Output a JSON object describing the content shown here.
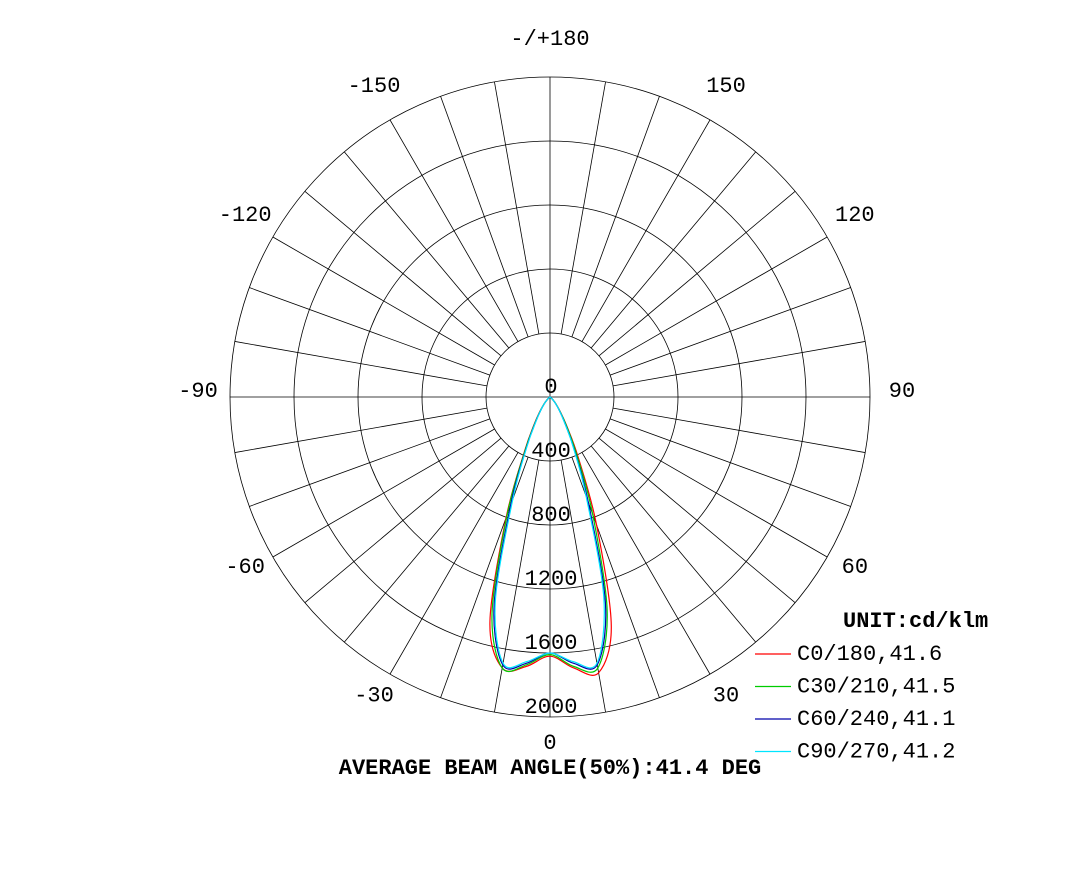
{
  "chart_data": {
    "type": "polar",
    "title": "AVERAGE BEAM ANGLE(50%):41.4 DEG",
    "unit_label": "UNIT:cd/klm",
    "theta": [
      -90,
      -60,
      -45,
      -40,
      -35,
      -30,
      -25,
      -20,
      -15,
      -10,
      -5,
      0,
      5,
      10,
      15,
      20,
      25,
      30,
      35,
      40,
      45,
      60,
      90
    ],
    "rlim": [
      0,
      2000
    ],
    "rticks": [
      0,
      400,
      800,
      1200,
      1600,
      2000
    ],
    "thetaticks": [
      0,
      30,
      60,
      90,
      120,
      150,
      {
        "value": 180,
        "label": "-/+180"
      },
      -150,
      -120,
      -90,
      -60,
      -30
    ],
    "series": [
      {
        "name": "C0/180,41.6",
        "color": "#ff0000",
        "values": [
          0,
          5,
          30,
          60,
          110,
          200,
          380,
          800,
          1450,
          1720,
          1690,
          1620,
          1700,
          1750,
          1480,
          850,
          420,
          210,
          110,
          60,
          30,
          5,
          0
        ]
      },
      {
        "name": "C30/210,41.5",
        "color": "#00cc00",
        "values": [
          0,
          5,
          30,
          60,
          105,
          190,
          370,
          780,
          1400,
          1720,
          1680,
          1610,
          1690,
          1720,
          1380,
          780,
          390,
          200,
          105,
          60,
          30,
          5,
          0
        ]
      },
      {
        "name": "C60/240,41.1",
        "color": "#0000aa",
        "values": [
          0,
          5,
          28,
          55,
          100,
          180,
          350,
          720,
          1350,
          1700,
          1670,
          1600,
          1670,
          1700,
          1340,
          700,
          350,
          180,
          100,
          55,
          28,
          5,
          0
        ]
      },
      {
        "name": "C90/270,41.2",
        "color": "#00e5ff",
        "values": [
          0,
          5,
          28,
          55,
          100,
          175,
          340,
          680,
          1320,
          1690,
          1660,
          1600,
          1660,
          1690,
          1300,
          660,
          340,
          175,
          100,
          55,
          28,
          5,
          0
        ]
      }
    ]
  }
}
